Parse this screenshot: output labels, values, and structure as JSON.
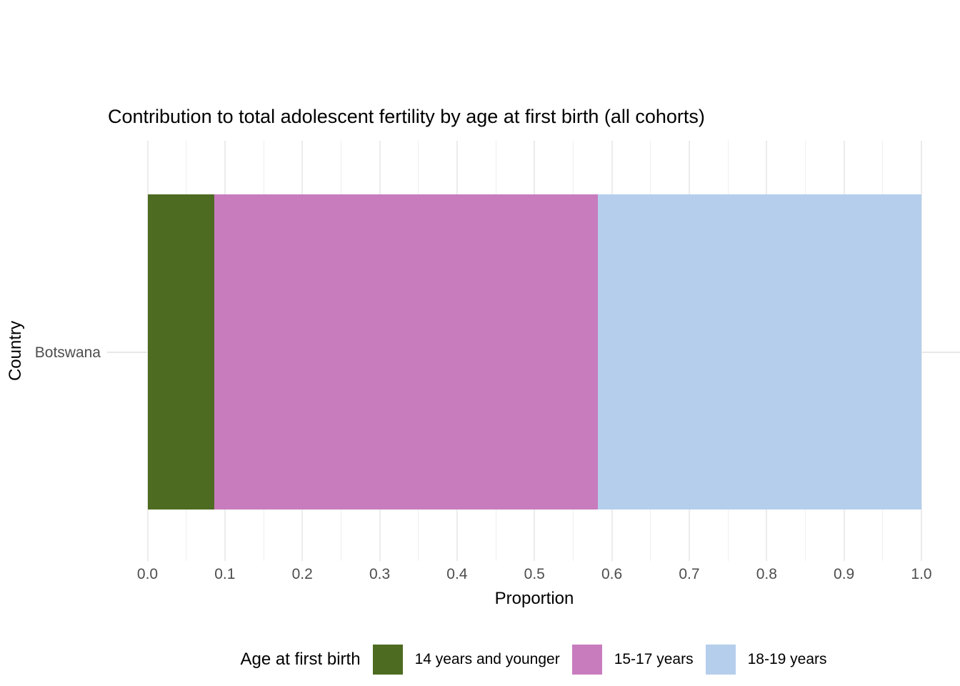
{
  "chart_data": {
    "type": "bar",
    "orientation": "horizontal",
    "stacked": true,
    "title": "Contribution to total adolescent fertility by age at first birth (all cohorts)",
    "xlabel": "Proportion",
    "ylabel": "Country",
    "categories": [
      "Botswana"
    ],
    "series": [
      {
        "name": "14 years and younger",
        "color": "#4D6B21",
        "values": [
          0.086
        ]
      },
      {
        "name": "15-17 years",
        "color": "#C87CBE",
        "values": [
          0.496
        ]
      },
      {
        "name": "18-19 years",
        "color": "#B5CEEC",
        "values": [
          0.418
        ]
      }
    ],
    "xlim": [
      0,
      1
    ],
    "x_tick_labels": [
      "0.0",
      "0.1",
      "0.2",
      "0.3",
      "0.4",
      "0.5",
      "0.6",
      "0.7",
      "0.8",
      "0.9",
      "1.0"
    ],
    "grid": {
      "vertical_step": 0.05,
      "minor_between_majors": true,
      "color": "#EBEBEB",
      "horizontal_at_category": true
    },
    "legend": {
      "title": "Age at first birth",
      "position": "bottom"
    }
  }
}
